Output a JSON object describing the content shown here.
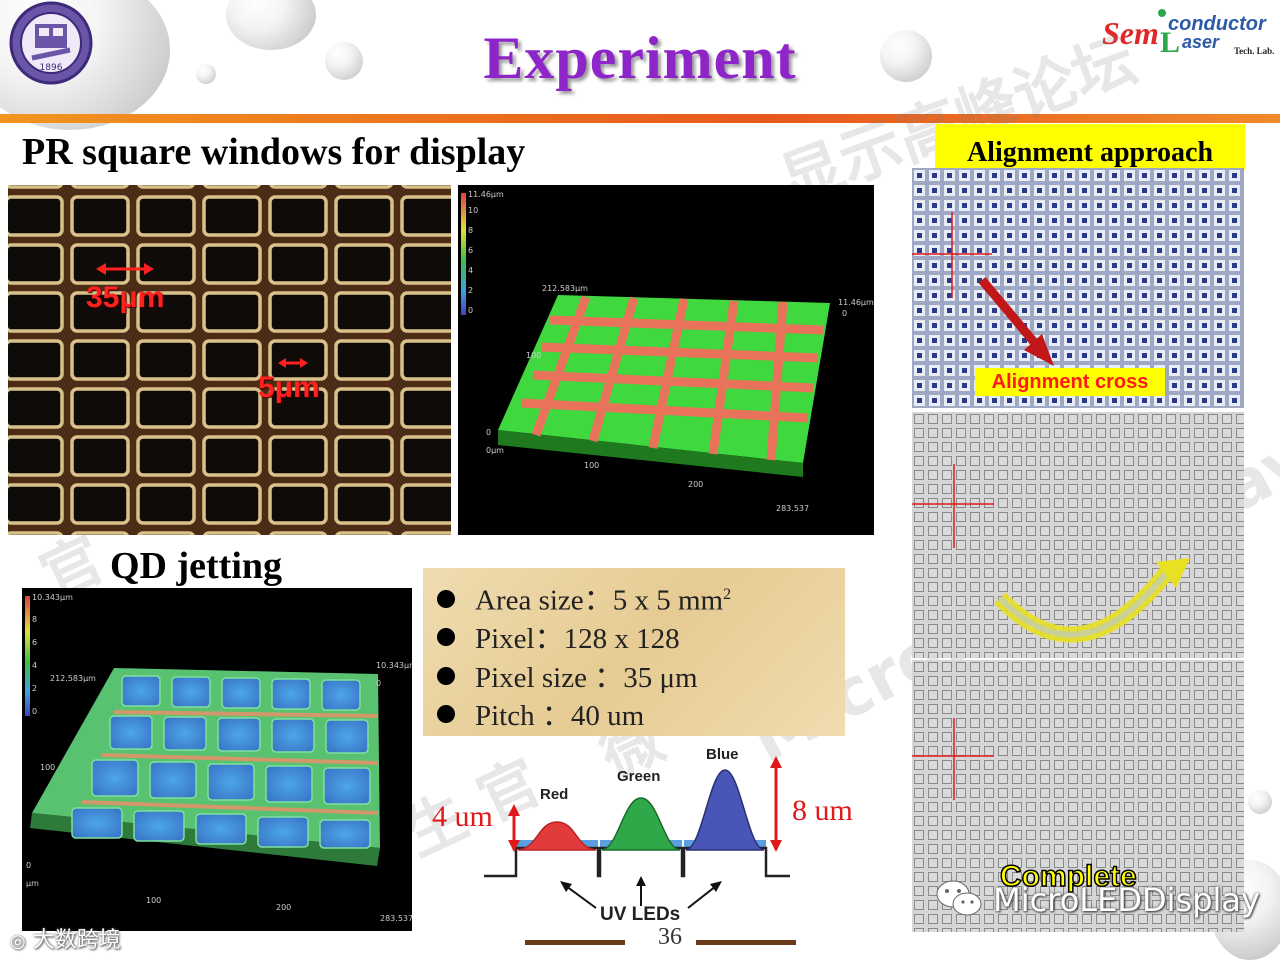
{
  "slide": {
    "title": "Experiment",
    "page_number": "36"
  },
  "logo": {
    "university_seal_text": "1896",
    "lab_word_semi": "Sem",
    "lab_word_conductor": "conductor",
    "lab_word_laser": "aser",
    "lab_word_tech": "Tech. Lab."
  },
  "sections": {
    "pr_heading": "PR square windows for display",
    "qd_heading": "QD jetting",
    "alignment_heading": "Alignment approach"
  },
  "microscope": {
    "label_35": "35μm",
    "label_5": "5μm"
  },
  "pr_3d_plot": {
    "scale_top": "11.46μm",
    "scale_ticks": [
      "10",
      "8",
      "6",
      "4",
      "2",
      "0"
    ],
    "left_dim": "212.583μm",
    "right_dim_top": "11.46μm",
    "right_dim_zero": "0",
    "axis_100": "100",
    "axis_0": "0",
    "axis_0um": "0μm",
    "x_100": "100",
    "x_200": "200",
    "x_end": "283.537"
  },
  "qd_3d_plot": {
    "scale_top": "10.343μm",
    "scale_ticks": [
      "8",
      "6",
      "4",
      "2",
      "0"
    ],
    "left_dim": "212.583μm",
    "right_dim_top": "10.343μm",
    "right_dim_zero": "0",
    "axis_100": "100",
    "axis_0": "0",
    "axis_um": "μm",
    "x_100": "100",
    "x_200": "200",
    "x_end": "283.537"
  },
  "specs": [
    {
      "label": "Area size",
      "sep": "：",
      "value": "5 x 5 mm",
      "sup": "2"
    },
    {
      "label": "Pixel",
      "sep": "：",
      "value": "128 x 128",
      "sup": ""
    },
    {
      "label": "Pixel size ",
      "sep": "：",
      "value": "35 μm",
      "sup": ""
    },
    {
      "label": "Pitch ",
      "sep": "：",
      "value": "40 um",
      "sup": ""
    }
  ],
  "led_diagram": {
    "red": "Red",
    "green": "Green",
    "blue": "Blue",
    "height_left": "4 um",
    "height_right": "8 um",
    "uv_leds": "UV LEDs",
    "colors": {
      "red": "#e23b3b",
      "green": "#2fa84a",
      "blue": "#4a55b8"
    }
  },
  "alignment": {
    "cross_label": "Alignment cross",
    "complete_label": "Complete"
  },
  "watermarks": {
    "wechat": "MicroLEDDisplay",
    "bottom_left": "大数跨境",
    "diag_1": "MicroLEDDisplay",
    "diag_2": "官",
    "diag_3": "微",
    "diag_4": "显示高峰论坛",
    "diag_5": "生 官"
  }
}
